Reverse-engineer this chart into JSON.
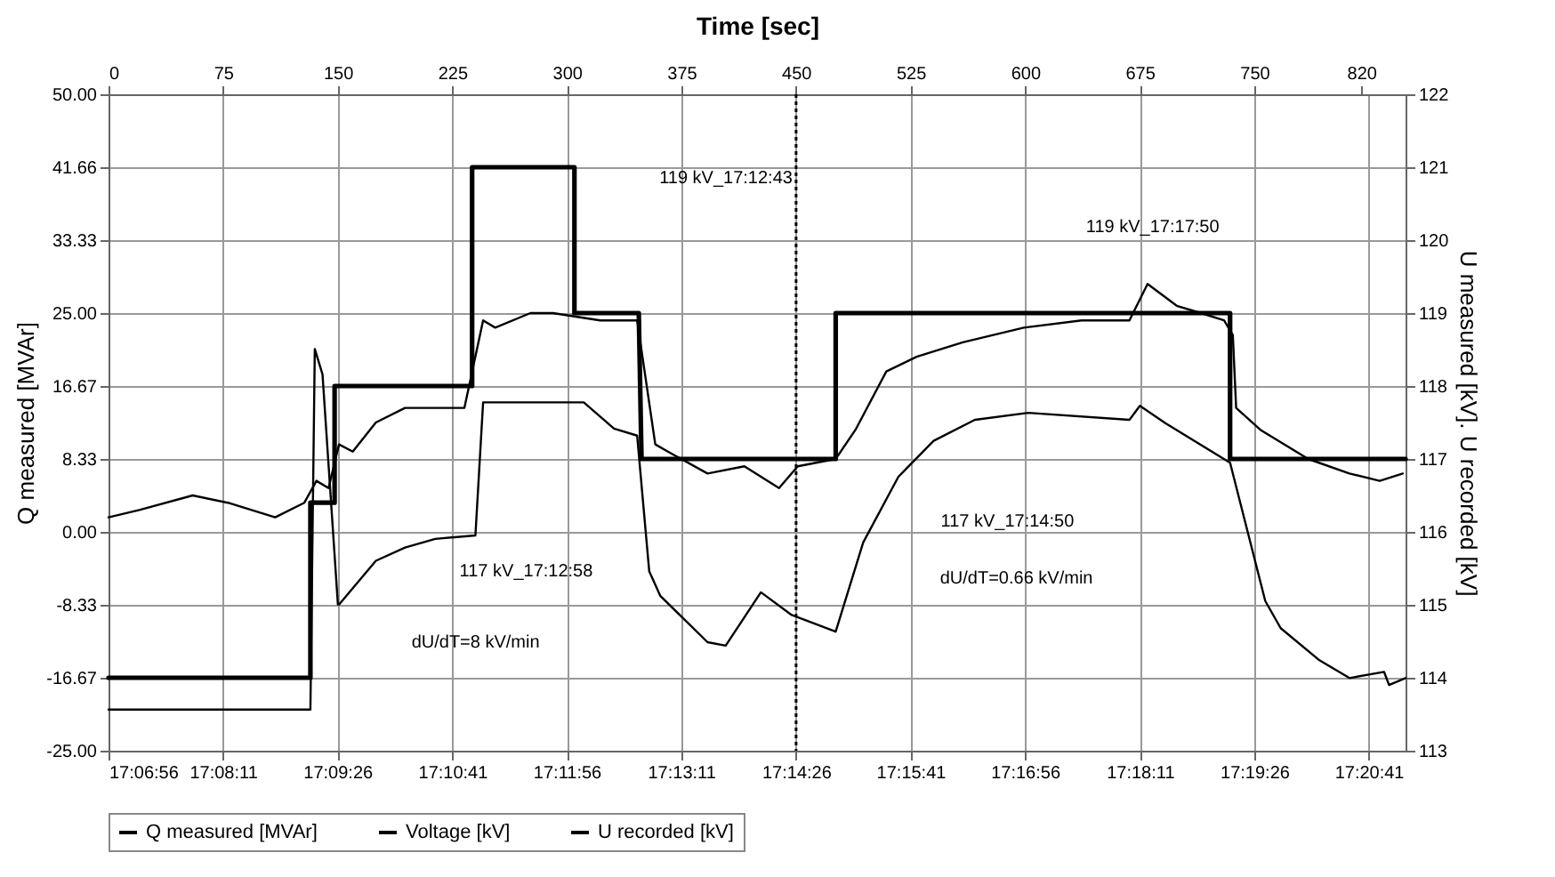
{
  "chart_data": {
    "type": "line",
    "x2label": "Time [sec]",
    "ylabel": "Q measured [MVAr]",
    "y2label": "U measured [kV].      U recorded [kV]",
    "xlim": [
      17.1156,
      17.3514
    ],
    "xticks": [
      {
        "value": 17.1156,
        "label": "17:06:56"
      },
      {
        "value": 17.1364,
        "label": "17:08:11"
      },
      {
        "value": 17.1572,
        "label": "17:09:26"
      },
      {
        "value": 17.1781,
        "label": "17:10:41"
      },
      {
        "value": 17.1989,
        "label": "17:11:56"
      },
      {
        "value": 17.2197,
        "label": "17:13:11"
      },
      {
        "value": 17.2406,
        "label": "17:14:26"
      },
      {
        "value": 17.2614,
        "label": "17:15:41"
      },
      {
        "value": 17.2822,
        "label": "17:16:56"
      },
      {
        "value": 17.3031,
        "label": "17:18:11"
      },
      {
        "value": 17.3239,
        "label": "17:19:26"
      },
      {
        "value": 17.3447,
        "label": "17:20:41"
      }
    ],
    "x2lim": [
      0,
      849
    ],
    "x2ticks": [
      0,
      75,
      150,
      225,
      300,
      375,
      450,
      525,
      600,
      675,
      750,
      820
    ],
    "ylim": [
      -25,
      50
    ],
    "yticks": [
      {
        "value": 50,
        "label": "50.00"
      },
      {
        "value": 41.66,
        "label": "41.66"
      },
      {
        "value": 33.33,
        "label": "33.33"
      },
      {
        "value": 25,
        "label": "25.00"
      },
      {
        "value": 16.67,
        "label": "16.67"
      },
      {
        "value": 8.33,
        "label": "8.33"
      },
      {
        "value": 0,
        "label": "0.00"
      },
      {
        "value": -8.33,
        "label": "-8.33"
      },
      {
        "value": -16.67,
        "label": "-16.67"
      },
      {
        "value": -25,
        "label": "-25.00"
      }
    ],
    "y2lim": [
      113,
      122
    ],
    "y2ticks": [
      113,
      114,
      115,
      116,
      117,
      118,
      119,
      120,
      121,
      122
    ],
    "grid": true,
    "legend": "bottom",
    "series": [
      {
        "name": "Q measured [MVAr]",
        "color": "#000000",
        "x": [
          17.1156,
          17.1523,
          17.1531,
          17.1545,
          17.1573,
          17.1575,
          17.1642,
          17.1695,
          17.175,
          17.1823,
          17.1837,
          17.202,
          17.2075,
          17.2117,
          17.2139,
          17.2159,
          17.2245,
          17.2278,
          17.2342,
          17.2398,
          17.2478,
          17.2528,
          17.2592,
          17.2656,
          17.2731,
          17.2828,
          17.3012,
          17.3031,
          17.3078,
          17.3195,
          17.3259,
          17.3287,
          17.3356,
          17.3412,
          17.3475,
          17.3484,
          17.3514
        ],
        "values": [
          -20.3,
          -20.3,
          20.9,
          18,
          -8.3,
          -8.3,
          -3.3,
          -1.8,
          -0.8,
          -0.4,
          14.8,
          14.8,
          11.8,
          11,
          -4.5,
          -7.3,
          -12.6,
          -13,
          -6.9,
          -9.5,
          -11.4,
          -1.2,
          6.3,
          10.4,
          12.8,
          13.6,
          12.8,
          14.4,
          12.4,
          7.9,
          -7.9,
          -11,
          -14.6,
          -16.7,
          -16,
          -17.5,
          -16.7
        ]
      },
      {
        "name": "Voltage [kV]",
        "color": "#000000",
        "axis": "y2",
        "x": [
          17.1156,
          17.1212,
          17.1309,
          17.1373,
          17.1459,
          17.1512,
          17.1534,
          17.1556,
          17.1575,
          17.16,
          17.1642,
          17.1695,
          17.1762,
          17.1803,
          17.1837,
          17.1859,
          17.1923,
          17.1964,
          17.205,
          17.2117,
          17.215,
          17.2173,
          17.2245,
          17.2312,
          17.2375,
          17.2409,
          17.2478,
          17.2514,
          17.257,
          17.2625,
          17.2709,
          17.282,
          17.2925,
          17.3012,
          17.3045,
          17.3098,
          17.3142,
          17.3184,
          17.32,
          17.3206,
          17.325,
          17.3337,
          17.3412,
          17.3467,
          17.3509
        ],
        "values": [
          116.2,
          116.3,
          116.5,
          116.4,
          116.2,
          116.4,
          116.7,
          116.6,
          117.2,
          117.1,
          117.5,
          117.7,
          117.7,
          117.7,
          118.9,
          118.8,
          119.0,
          119.0,
          118.9,
          118.9,
          117.2,
          117.1,
          116.8,
          116.9,
          116.6,
          116.9,
          117.0,
          117.4,
          118.2,
          118.4,
          118.6,
          118.8,
          118.9,
          118.9,
          119.4,
          119.1,
          119.0,
          118.9,
          118.7,
          117.7,
          117.4,
          117.0,
          116.8,
          116.7,
          116.8
        ]
      },
      {
        "name": "U recorded [kV]",
        "color": "#000000",
        "axis": "y2",
        "x": [
          17.1156,
          17.1523,
          17.1523,
          17.1567,
          17.1567,
          17.1817,
          17.1817,
          17.2003,
          17.2003,
          17.212,
          17.2125,
          17.2478,
          17.2478,
          17.3195,
          17.3195,
          17.3514
        ],
        "values": [
          114.0,
          114.0,
          116.4,
          116.4,
          118.0,
          118.0,
          121.0,
          121.0,
          119.0,
          119.0,
          117.0,
          117.0,
          119.0,
          119.0,
          117.0,
          117.0
        ]
      }
    ],
    "ref_lines": [
      {
        "axis": "x",
        "value": 17.2406,
        "line_style": "dotted"
      }
    ],
    "annotations": [
      "119 kV_17:12:43",
      "117 kV_17:12:58",
      "dU/dT=8 kV/min",
      "117 kV_17:14:50",
      "dU/dT=0.66 kV/min",
      "119 kV_17:17:50"
    ]
  }
}
